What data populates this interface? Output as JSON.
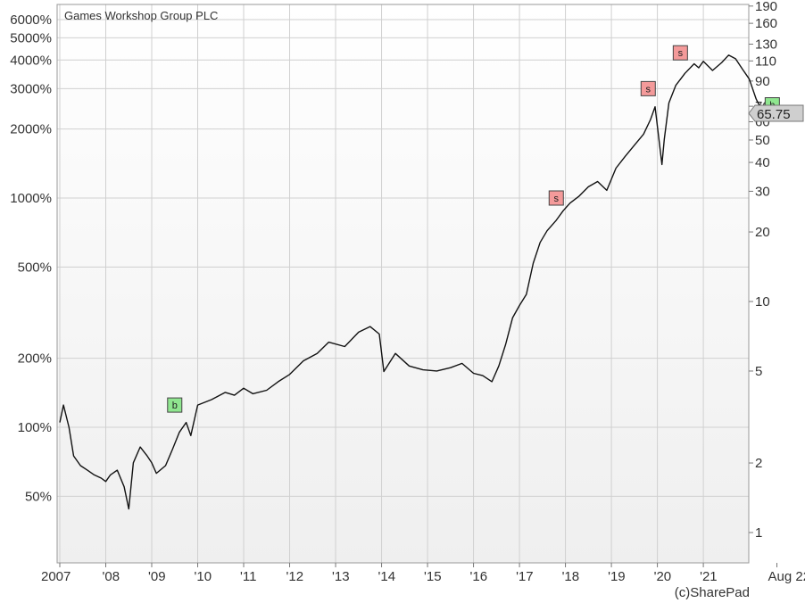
{
  "chart_data": {
    "type": "line",
    "title": "Games Workshop Group PLC",
    "credit": "(c)SharePad",
    "last_price_label": "65.75",
    "left_axis": {
      "scale": "log",
      "ticks": [
        "6000%",
        "5000%",
        "4000%",
        "3000%",
        "2000%",
        "1000%",
        "500%",
        "200%",
        "100%",
        "50%"
      ],
      "tick_values": [
        6000,
        5000,
        4000,
        3000,
        2000,
        1000,
        500,
        200,
        100,
        50
      ]
    },
    "right_axis": {
      "scale": "log",
      "ticks": [
        "190",
        "160",
        "130",
        "110",
        "90",
        "70",
        "60",
        "50",
        "40",
        "30",
        "20",
        "10",
        "5",
        "2",
        "1"
      ],
      "tick_values": [
        190,
        160,
        130,
        110,
        90,
        70,
        60,
        50,
        40,
        30,
        20,
        10,
        5,
        2,
        1
      ]
    },
    "x_axis": {
      "ticks": [
        "2007",
        "'08",
        "'09",
        "'10",
        "'11",
        "'12",
        "'13",
        "'14",
        "'15",
        "'16",
        "'17",
        "'18",
        "'19",
        "'20",
        "'21",
        "Aug 22"
      ],
      "tick_dates": [
        2007.0,
        2008.0,
        2009.0,
        2010.0,
        2011.0,
        2012.0,
        2013.0,
        2014.0,
        2015.0,
        2016.0,
        2017.0,
        2018.0,
        2019.0,
        2020.0,
        2021.0,
        2022.6
      ]
    },
    "grid": true,
    "series": [
      {
        "color": "#111111",
        "x": [
          2007.0,
          2007.08,
          2007.2,
          2007.3,
          2007.45,
          2007.6,
          2007.75,
          2007.9,
          2008.0,
          2008.1,
          2008.25,
          2008.4,
          2008.5,
          2008.6,
          2008.75,
          2008.9,
          2009.0,
          2009.1,
          2009.3,
          2009.45,
          2009.6,
          2009.75,
          2009.85,
          2010.0,
          2010.3,
          2010.6,
          2010.8,
          2011.0,
          2011.2,
          2011.5,
          2011.75,
          2012.0,
          2012.3,
          2012.6,
          2012.85,
          2013.2,
          2013.5,
          2013.75,
          2013.95,
          2014.05,
          2014.3,
          2014.6,
          2014.9,
          2015.2,
          2015.5,
          2015.75,
          2016.0,
          2016.2,
          2016.4,
          2016.55,
          2016.7,
          2016.85,
          2017.0,
          2017.15,
          2017.3,
          2017.45,
          2017.6,
          2017.8,
          2017.95,
          2018.1,
          2018.3,
          2018.5,
          2018.7,
          2018.9,
          2019.1,
          2019.3,
          2019.5,
          2019.7,
          2019.85,
          2019.95,
          2020.1,
          2020.15,
          2020.25,
          2020.4,
          2020.6,
          2020.8,
          2020.9,
          2021.0,
          2021.2,
          2021.4,
          2021.55,
          2021.7,
          2021.85,
          2022.0,
          2022.15,
          2022.3,
          2022.4,
          2022.5,
          2022.55,
          2022.6
        ],
        "y": [
          105,
          125,
          100,
          75,
          68,
          65,
          62,
          60,
          58,
          62,
          65,
          55,
          44,
          70,
          82,
          75,
          70,
          63,
          68,
          80,
          95,
          105,
          92,
          125,
          132,
          142,
          138,
          148,
          140,
          145,
          158,
          170,
          195,
          210,
          235,
          225,
          260,
          275,
          255,
          175,
          210,
          185,
          178,
          176,
          182,
          190,
          172,
          168,
          158,
          185,
          230,
          300,
          340,
          380,
          520,
          640,
          720,
          800,
          880,
          950,
          1020,
          1120,
          1180,
          1080,
          1350,
          1520,
          1700,
          1900,
          2200,
          2500,
          1400,
          1800,
          2600,
          3100,
          3500,
          3850,
          3700,
          3950,
          3600,
          3900,
          4200,
          4050,
          3650,
          3300,
          2700,
          2350,
          2450,
          2300,
          2200,
          2240
        ]
      }
    ],
    "markers": [
      {
        "label": "b",
        "x": 2009.5,
        "y": 125,
        "color": "#8fe68f"
      },
      {
        "label": "s",
        "x": 2017.8,
        "y": 1000,
        "color": "#f49a9a"
      },
      {
        "label": "s",
        "x": 2019.8,
        "y": 3000,
        "color": "#f49a9a"
      },
      {
        "label": "s",
        "x": 2020.5,
        "y": 4300,
        "color": "#f49a9a"
      },
      {
        "label": "b",
        "x": 2022.5,
        "y": 2550,
        "color": "#8fe68f"
      }
    ]
  }
}
